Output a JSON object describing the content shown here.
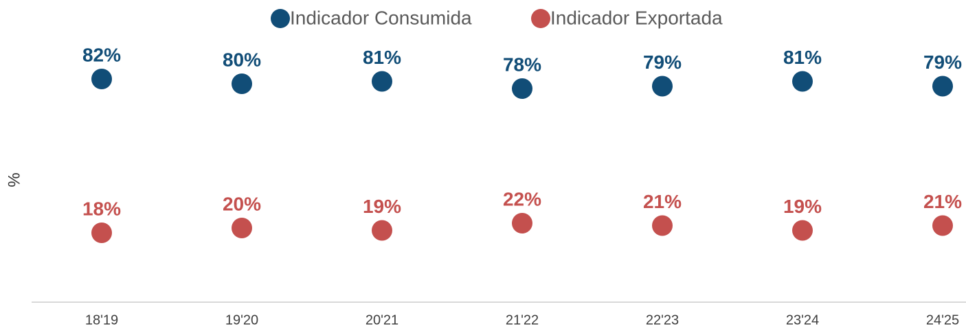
{
  "chart_data": {
    "type": "dot",
    "y_label": "%",
    "categories": [
      "18'19",
      "19'20",
      "20'21",
      "21'22",
      "22'23",
      "23'24",
      "24'25"
    ],
    "series": [
      {
        "name": "Indicador Consumida",
        "color": "#114d77",
        "values": [
          82,
          80,
          81,
          78,
          79,
          81,
          79
        ],
        "value_labels": [
          "82%",
          "80%",
          "81%",
          "78%",
          "79%",
          "81%",
          "79%"
        ]
      },
      {
        "name": "Indicador Exportada",
        "color": "#c4504e",
        "values": [
          18,
          20,
          19,
          22,
          21,
          19,
          21
        ],
        "value_labels": [
          "18%",
          "20%",
          "19%",
          "22%",
          "21%",
          "19%",
          "21%"
        ]
      }
    ],
    "ylim": [
      -10,
      100
    ],
    "legend": "top"
  }
}
